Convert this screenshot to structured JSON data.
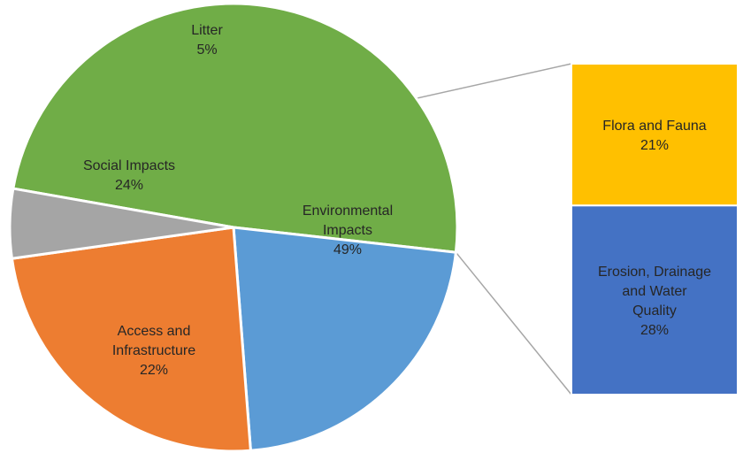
{
  "chart_data": {
    "type": "bar-of-pie",
    "pie": {
      "slices": [
        {
          "label": "Environmental Impacts",
          "value": 49,
          "display": "49%",
          "color": "#70ad47"
        },
        {
          "label": "Access and Infrastructure",
          "value": 22,
          "display": "22%",
          "color": "#5b9bd5"
        },
        {
          "label": "Social Impacts",
          "value": 24,
          "display": "24%",
          "color": "#ed7d31"
        },
        {
          "label": "Litter",
          "value": 5,
          "display": "5%",
          "color": "#a5a5a5"
        }
      ]
    },
    "breakdown": {
      "of": "Environmental Impacts",
      "segments": [
        {
          "label": "Flora and Fauna",
          "value": 21,
          "display": "21%",
          "color": "#ffc000"
        },
        {
          "label": "Erosion, Drainage and Water Quality",
          "value": 28,
          "display": "28%",
          "color": "#4472c4"
        }
      ]
    },
    "legend": "none",
    "grid": false
  }
}
